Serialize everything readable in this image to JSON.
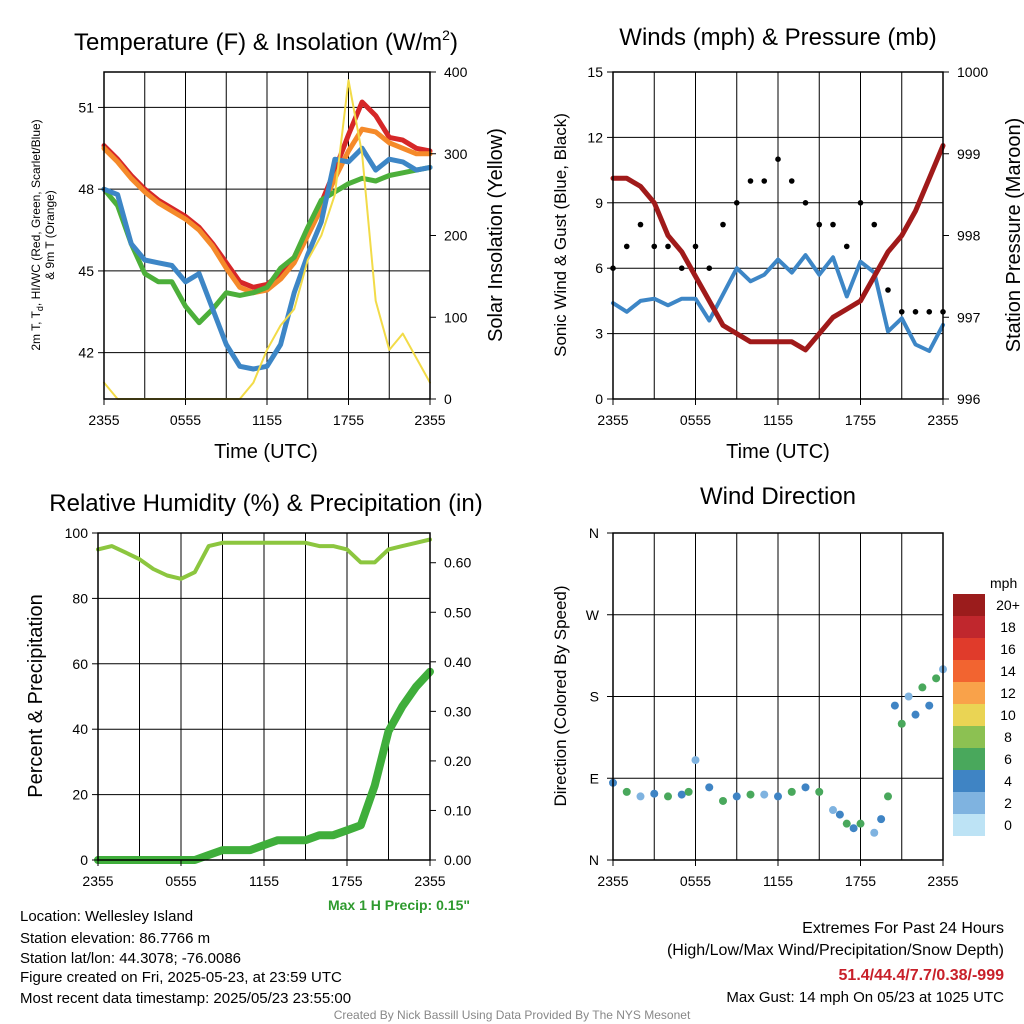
{
  "panels": {
    "temp": {
      "title": "Temperature (F) & Insolation (W/m",
      "title_sup": "2",
      "title_end": ")",
      "ylabel_left_1": "2m T, T",
      "ylabel_left_sub": "d",
      "ylabel_left_2": ", HI/WC (Red, Green, Scarlet/Blue)",
      "ylabel_left_line2": "& 9m T (Orange)",
      "ylabel_right": "Solar Insolation (Yellow)",
      "xlabel": "Time (UTC)"
    },
    "wind": {
      "title": "Winds (mph) & Pressure (mb)",
      "ylabel_left": "Sonic Wind & Gust (Blue, Black)",
      "ylabel_right": "Station Pressure (Maroon)",
      "xlabel": "Time (UTC)"
    },
    "rh": {
      "title": "Relative Humidity (%) & Precipitation (in)",
      "ylabel_left": "Percent & Precipitation",
      "precip_note": "Max 1 H Precip: 0.15\""
    },
    "dir": {
      "title": "Wind Direction",
      "ylabel_left": "Direction (Colored By Speed)",
      "legend_title": "mph",
      "legend_labels": [
        "20+",
        "18",
        "16",
        "14",
        "12",
        "10",
        "8",
        "6",
        "4",
        "2",
        "0"
      ],
      "legend_colors": [
        "#9b1c1c",
        "#c0272d",
        "#e03b2b",
        "#f26430",
        "#f9a24a",
        "#ead454",
        "#8cc152",
        "#49a85c",
        "#3f84c4",
        "#7fb3e0",
        "#bde3f5"
      ]
    }
  },
  "info": {
    "location": "Location: Wellesley Island",
    "elevation": "Station elevation: 86.7766 m",
    "latlon": "Station lat/lon: 44.3078; -76.0086",
    "created": "Figure created on Fri, 2025-05-23, at 23:59 UTC",
    "recent": "Most recent data timestamp: 2025/05/23 23:55:00"
  },
  "extremes": {
    "title": "Extremes For Past 24 Hours",
    "subtitle": "(High/Low/Max Wind/Precipitation/Snow Depth)",
    "values": "51.4/44.4/7.7/0.38/-999",
    "gust": "Max Gust: 14 mph On 05/23 at 1025 UTC"
  },
  "credit": "Created By Nick Bassill Using Data Provided By The NYS Mesonet",
  "chart_data": [
    {
      "type": "line",
      "title": "Temperature (F) & Insolation (W/m2)",
      "xlabel": "Time (UTC)",
      "x_ticks": [
        "2355",
        "0555",
        "1155",
        "1755",
        "2355"
      ],
      "x_hours": [
        0,
        1,
        2,
        3,
        4,
        5,
        6,
        7,
        8,
        9,
        10,
        11,
        12,
        13,
        14,
        15,
        16,
        17,
        18,
        19,
        20,
        21,
        22,
        23,
        24
      ],
      "y_ticks_left": [
        "42",
        "45",
        "48",
        "51"
      ],
      "y_ticks_right": [
        "0",
        "100",
        "200",
        "300",
        "400"
      ],
      "ylim_left": [
        40.3,
        52.3
      ],
      "ylim_right": [
        0,
        400
      ],
      "series": [
        {
          "name": "2m T (Red)",
          "color": "#d62728",
          "values": [
            49.6,
            49.1,
            48.5,
            48.0,
            47.6,
            47.3,
            47.0,
            46.6,
            46.0,
            45.3,
            44.6,
            44.4,
            44.5,
            44.9,
            45.5,
            46.5,
            47.5,
            48.7,
            50.0,
            51.2,
            50.7,
            49.9,
            49.8,
            49.5,
            49.4
          ]
        },
        {
          "name": "9m T (Orange)",
          "color": "#f58a2a",
          "values": [
            49.5,
            49.0,
            48.4,
            47.9,
            47.5,
            47.2,
            46.9,
            46.5,
            45.9,
            45.1,
            44.4,
            44.2,
            44.3,
            44.7,
            45.3,
            46.3,
            47.3,
            48.4,
            49.4,
            50.2,
            50.1,
            49.7,
            49.5,
            49.3,
            49.3
          ]
        },
        {
          "name": "Td (Green)",
          "color": "#4caf3a",
          "values": [
            48.0,
            47.4,
            46.0,
            44.9,
            44.6,
            44.6,
            43.7,
            43.1,
            43.6,
            44.2,
            44.1,
            44.2,
            44.4,
            45.1,
            45.5,
            46.6,
            47.6,
            47.9,
            48.2,
            48.4,
            48.3,
            48.5,
            48.6,
            48.7,
            48.8
          ]
        },
        {
          "name": "HI/WC (Scarlet/Blue)",
          "color": "#3d86c6",
          "values": [
            48.0,
            47.8,
            46.0,
            45.4,
            45.3,
            45.2,
            44.6,
            44.9,
            43.6,
            42.3,
            41.5,
            41.4,
            41.5,
            42.3,
            44.2,
            45.6,
            46.8,
            49.1,
            49.0,
            49.5,
            48.7,
            49.1,
            49.0,
            48.7,
            48.8
          ]
        },
        {
          "name": "Solar Insolation (Yellow)",
          "color": "#f2db48",
          "values": [
            20,
            0,
            0,
            0,
            0,
            0,
            0,
            0,
            0,
            0,
            0,
            20,
            60,
            90,
            110,
            170,
            200,
            250,
            390,
            300,
            120,
            60,
            80,
            50,
            20
          ]
        }
      ]
    },
    {
      "type": "line",
      "title": "Winds (mph) & Pressure (mb)",
      "xlabel": "Time (UTC)",
      "x_ticks": [
        "2355",
        "0555",
        "1155",
        "1755",
        "2355"
      ],
      "x_hours": [
        0,
        1,
        2,
        3,
        4,
        5,
        6,
        7,
        8,
        9,
        10,
        11,
        12,
        13,
        14,
        15,
        16,
        17,
        18,
        19,
        20,
        21,
        22,
        23,
        24
      ],
      "y_ticks_left": [
        "0",
        "3",
        "6",
        "9",
        "12",
        "15"
      ],
      "y_ticks_right": [
        "996",
        "997",
        "998",
        "999",
        "1000"
      ],
      "ylim_left": [
        0,
        15
      ],
      "ylim_right": [
        996,
        1000
      ],
      "series": [
        {
          "name": "Sonic Wind (Blue)",
          "color": "#3d86c6",
          "values": [
            4.4,
            4.0,
            4.5,
            4.6,
            4.3,
            4.6,
            4.6,
            3.6,
            4.8,
            6.0,
            5.4,
            5.7,
            6.4,
            5.8,
            6.6,
            5.7,
            6.5,
            4.7,
            6.3,
            5.8,
            3.1,
            3.7,
            2.5,
            2.2,
            3.4
          ]
        },
        {
          "name": "Gust (Black)",
          "color": "#000000",
          "values": [
            6,
            7,
            8,
            7,
            7,
            6,
            7,
            6,
            8,
            9,
            10,
            10,
            11,
            10,
            9,
            8,
            8,
            7,
            9,
            8,
            5,
            4,
            4,
            4,
            4
          ]
        },
        {
          "name": "Station Pressure (Maroon)",
          "color": "#a01a1a",
          "values": [
            998.7,
            998.7,
            998.6,
            998.4,
            998.0,
            997.8,
            997.5,
            997.2,
            996.9,
            996.8,
            996.7,
            996.7,
            996.7,
            996.7,
            996.6,
            996.8,
            997.0,
            997.1,
            997.2,
            997.5,
            997.8,
            998.0,
            998.3,
            998.7,
            999.1
          ]
        }
      ]
    },
    {
      "type": "line",
      "title": "Relative Humidity (%) & Precipitation (in)",
      "x_ticks": [
        "2355",
        "0555",
        "1155",
        "1755",
        "2355"
      ],
      "x_hours": [
        0,
        1,
        2,
        3,
        4,
        5,
        6,
        7,
        8,
        9,
        10,
        11,
        12,
        13,
        14,
        15,
        16,
        17,
        18,
        19,
        20,
        21,
        22,
        23,
        24
      ],
      "y_ticks_left": [
        "0",
        "20",
        "40",
        "60",
        "80",
        "100"
      ],
      "y_ticks_right": [
        "0.00",
        "0.10",
        "0.20",
        "0.30",
        "0.40",
        "0.50",
        "0.60"
      ],
      "ylim_left": [
        0,
        100
      ],
      "ylim_right": [
        0,
        0.66
      ],
      "series": [
        {
          "name": "Relative Humidity",
          "color": "#8cc63f",
          "values": [
            95,
            96,
            94,
            92,
            89,
            87,
            86,
            88,
            96,
            97,
            97,
            97,
            97,
            97,
            97,
            97,
            96,
            96,
            95,
            91,
            91,
            95,
            96,
            97,
            98
          ]
        },
        {
          "name": "Precipitation",
          "color": "#3fae3b",
          "values": [
            0,
            0,
            0,
            0,
            0,
            0,
            0,
            0,
            0.01,
            0.02,
            0.02,
            0.02,
            0.03,
            0.04,
            0.04,
            0.04,
            0.05,
            0.05,
            0.06,
            0.07,
            0.15,
            0.26,
            0.31,
            0.35,
            0.38
          ]
        }
      ]
    },
    {
      "type": "scatter",
      "title": "Wind Direction",
      "x_ticks": [
        "2355",
        "0555",
        "1155",
        "1755",
        "2355"
      ],
      "y_ticks": [
        "N",
        "E",
        "S",
        "W",
        "N"
      ],
      "ylim": [
        0,
        360
      ],
      "x_hours": [
        0,
        1,
        2,
        3,
        4,
        5,
        5.5,
        6,
        7,
        8,
        9,
        10,
        11,
        12,
        13,
        14,
        15,
        16,
        16.5,
        17,
        17.5,
        18,
        19,
        19.5,
        20,
        20.5,
        21,
        21.5,
        22,
        22.5,
        23,
        23.5,
        24
      ],
      "directions": [
        85,
        75,
        70,
        73,
        70,
        72,
        75,
        110,
        80,
        65,
        70,
        72,
        72,
        70,
        75,
        80,
        75,
        55,
        50,
        40,
        35,
        40,
        30,
        45,
        70,
        170,
        150,
        180,
        160,
        190,
        170,
        200,
        210
      ]
    }
  ]
}
